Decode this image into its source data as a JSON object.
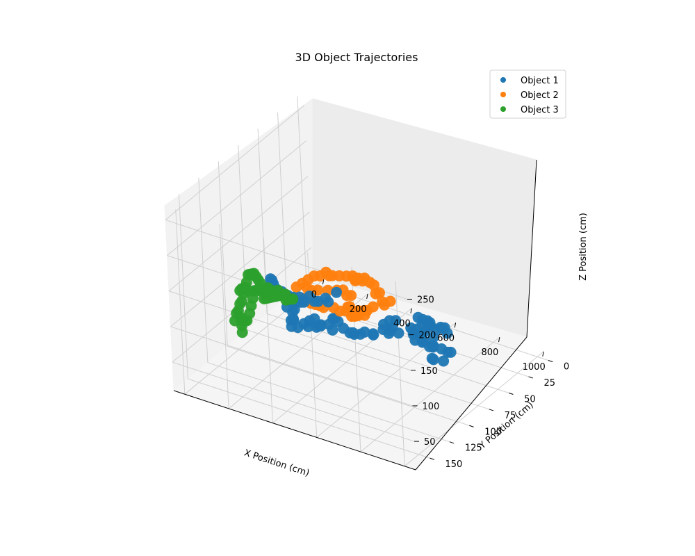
{
  "chart_data": {
    "type": "scatter",
    "projection": "3d",
    "title": "3D Object Trajectories",
    "xlabel": "X Position (cm)",
    "ylabel": "Y Position (cm)",
    "zlabel": "Z Position (cm)",
    "xlim": [
      -50,
      1050
    ],
    "ylim": [
      -8,
      168
    ],
    "zlim": [
      10,
      270
    ],
    "x_ticks": [
      0,
      200,
      400,
      600,
      800,
      1000
    ],
    "y_ticks": [
      0,
      25,
      50,
      75,
      100,
      125,
      150
    ],
    "z_ticks": [
      50,
      100,
      150,
      200,
      250
    ],
    "grid": true,
    "legend_position": "top-right",
    "series": [
      {
        "name": "Object 1",
        "color": "#1f77b4",
        "points": [
          [
            300,
            140,
            165
          ],
          [
            315,
            138,
            170
          ],
          [
            330,
            142,
            180
          ],
          [
            345,
            144,
            172
          ],
          [
            360,
            150,
            168
          ],
          [
            300,
            125,
            140
          ],
          [
            290,
            130,
            160
          ],
          [
            320,
            128,
            150
          ],
          [
            340,
            120,
            135
          ],
          [
            350,
            110,
            125
          ],
          [
            340,
            100,
            120
          ],
          [
            360,
            95,
            110
          ],
          [
            380,
            88,
            105
          ],
          [
            390,
            80,
            112
          ],
          [
            395,
            95,
            118
          ],
          [
            400,
            110,
            128
          ],
          [
            395,
            125,
            140
          ],
          [
            410,
            135,
            150
          ],
          [
            420,
            140,
            146
          ],
          [
            440,
            150,
            142
          ],
          [
            460,
            155,
            140
          ],
          [
            470,
            150,
            135
          ],
          [
            480,
            140,
            128
          ],
          [
            500,
            130,
            122
          ],
          [
            520,
            135,
            130
          ],
          [
            510,
            140,
            142
          ],
          [
            525,
            150,
            150
          ],
          [
            500,
            120,
            115
          ],
          [
            505,
            110,
            110
          ],
          [
            510,
            115,
            120
          ],
          [
            520,
            120,
            125
          ],
          [
            490,
            100,
            90
          ],
          [
            500,
            95,
            80
          ],
          [
            495,
            90,
            75
          ],
          [
            510,
            85,
            70
          ],
          [
            530,
            85,
            75
          ],
          [
            550,
            80,
            70
          ],
          [
            570,
            85,
            75
          ],
          [
            585,
            70,
            65
          ],
          [
            600,
            65,
            80
          ],
          [
            610,
            75,
            90
          ],
          [
            620,
            85,
            95
          ],
          [
            640,
            80,
            88
          ],
          [
            630,
            70,
            70
          ],
          [
            640,
            55,
            60
          ],
          [
            650,
            60,
            70
          ],
          [
            665,
            50,
            68
          ],
          [
            690,
            50,
            75
          ],
          [
            700,
            58,
            85
          ],
          [
            705,
            65,
            95
          ],
          [
            720,
            55,
            80
          ],
          [
            730,
            40,
            60
          ],
          [
            740,
            45,
            65
          ],
          [
            750,
            50,
            72
          ],
          [
            760,
            45,
            60
          ],
          [
            770,
            60,
            80
          ],
          [
            780,
            70,
            95
          ],
          [
            790,
            90,
            110
          ],
          [
            800,
            95,
            100
          ],
          [
            820,
            85,
            110
          ],
          [
            840,
            95,
            115
          ],
          [
            860,
            100,
            108
          ],
          [
            870,
            105,
            118
          ],
          [
            890,
            110,
            120
          ],
          [
            880,
            95,
            100
          ],
          [
            900,
            100,
            105
          ],
          [
            910,
            85,
            85
          ],
          [
            905,
            80,
            80
          ],
          [
            920,
            95,
            100
          ],
          [
            940,
            110,
            120
          ],
          [
            960,
            120,
            130
          ],
          [
            950,
            115,
            108
          ],
          [
            930,
            108,
            98
          ],
          [
            945,
            100,
            90
          ],
          [
            310,
            120,
            120
          ],
          [
            325,
            135,
            160
          ],
          [
            335,
            145,
            185
          ],
          [
            355,
            130,
            150
          ],
          [
            370,
            120,
            140
          ],
          [
            380,
            130,
            150
          ],
          [
            390,
            120,
            135
          ],
          [
            410,
            140,
            155
          ],
          [
            430,
            145,
            148
          ],
          [
            450,
            150,
            145
          ],
          [
            470,
            155,
            150
          ],
          [
            460,
            140,
            130
          ],
          [
            470,
            125,
            115
          ],
          [
            485,
            112,
            98
          ],
          [
            480,
            130,
            118
          ],
          [
            520,
            95,
            80
          ],
          [
            560,
            70,
            68
          ],
          [
            600,
            72,
            72
          ],
          [
            660,
            60,
            62
          ],
          [
            700,
            52,
            70
          ],
          [
            760,
            62,
            70
          ],
          [
            810,
            90,
            103
          ]
        ]
      },
      {
        "name": "Object 2",
        "color": "#ff7f0e",
        "points": [
          [
            390,
            15,
            40
          ],
          [
            400,
            25,
            45
          ],
          [
            410,
            30,
            55
          ],
          [
            400,
            35,
            70
          ],
          [
            395,
            40,
            90
          ],
          [
            390,
            45,
            100
          ],
          [
            400,
            55,
            110
          ],
          [
            410,
            60,
            115
          ],
          [
            420,
            65,
            120
          ],
          [
            430,
            70,
            130
          ],
          [
            440,
            80,
            140
          ],
          [
            445,
            90,
            150
          ],
          [
            450,
            100,
            160
          ],
          [
            455,
            105,
            165
          ],
          [
            460,
            110,
            175
          ],
          [
            470,
            120,
            180
          ],
          [
            480,
            130,
            190
          ],
          [
            490,
            140,
            195
          ],
          [
            500,
            150,
            200
          ],
          [
            510,
            160,
            205
          ],
          [
            505,
            150,
            180
          ],
          [
            495,
            145,
            170
          ],
          [
            490,
            138,
            160
          ],
          [
            480,
            130,
            150
          ],
          [
            470,
            122,
            140
          ],
          [
            460,
            115,
            130
          ],
          [
            450,
            100,
            115
          ],
          [
            440,
            90,
            100
          ],
          [
            430,
            80,
            90
          ],
          [
            420,
            70,
            80
          ],
          [
            410,
            60,
            70
          ],
          [
            400,
            50,
            60
          ],
          [
            395,
            45,
            55
          ],
          [
            385,
            35,
            50
          ],
          [
            380,
            25,
            60
          ],
          [
            375,
            30,
            75
          ],
          [
            380,
            45,
            95
          ],
          [
            385,
            55,
            105
          ],
          [
            400,
            65,
            95
          ],
          [
            410,
            70,
            85
          ],
          [
            420,
            75,
            90
          ],
          [
            430,
            78,
            110
          ],
          [
            440,
            85,
            125
          ],
          [
            450,
            95,
            135
          ],
          [
            465,
            110,
            150
          ],
          [
            475,
            125,
            165
          ],
          [
            485,
            135,
            175
          ],
          [
            500,
            145,
            190
          ],
          [
            420,
            55,
            60
          ],
          [
            430,
            65,
            70
          ],
          [
            440,
            70,
            75
          ],
          [
            450,
            75,
            80
          ],
          [
            455,
            80,
            85
          ]
        ]
      },
      {
        "name": "Object 3",
        "color": "#2ca02c",
        "points": [
          [
            40,
            80,
            90
          ],
          [
            50,
            85,
            100
          ],
          [
            60,
            90,
            110
          ],
          [
            70,
            95,
            120
          ],
          [
            80,
            100,
            125
          ],
          [
            90,
            105,
            130
          ],
          [
            100,
            110,
            135
          ],
          [
            110,
            115,
            130
          ],
          [
            120,
            120,
            128
          ],
          [
            130,
            125,
            125
          ],
          [
            140,
            130,
            120
          ],
          [
            150,
            135,
            122
          ],
          [
            160,
            140,
            118
          ],
          [
            170,
            145,
            120
          ],
          [
            180,
            150,
            115
          ],
          [
            45,
            70,
            70
          ],
          [
            55,
            75,
            80
          ],
          [
            65,
            80,
            85
          ],
          [
            75,
            85,
            90
          ],
          [
            85,
            90,
            95
          ],
          [
            95,
            95,
            100
          ],
          [
            105,
            100,
            105
          ],
          [
            115,
            105,
            110
          ],
          [
            125,
            110,
            115
          ],
          [
            135,
            115,
            110
          ],
          [
            145,
            120,
            105
          ],
          [
            155,
            125,
            100
          ],
          [
            60,
            65,
            60
          ],
          [
            70,
            70,
            65
          ],
          [
            80,
            75,
            70
          ],
          [
            90,
            80,
            75
          ],
          [
            100,
            85,
            80
          ],
          [
            110,
            90,
            85
          ],
          [
            120,
            95,
            90
          ],
          [
            130,
            100,
            95
          ],
          [
            50,
            60,
            55
          ],
          [
            40,
            55,
            50
          ],
          [
            30,
            50,
            45
          ],
          [
            20,
            45,
            40
          ],
          [
            25,
            55,
            55
          ],
          [
            35,
            65,
            65
          ],
          [
            45,
            75,
            75
          ],
          [
            55,
            85,
            85
          ],
          [
            65,
            95,
            95
          ],
          [
            75,
            105,
            105
          ],
          [
            85,
            110,
            115
          ],
          [
            95,
            115,
            120
          ],
          [
            105,
            120,
            125
          ],
          [
            115,
            125,
            128
          ],
          [
            35,
            40,
            30
          ],
          [
            40,
            45,
            35
          ],
          [
            50,
            50,
            40
          ],
          [
            60,
            55,
            45
          ],
          [
            210,
            150,
            120
          ],
          [
            230,
            155,
            118
          ],
          [
            250,
            160,
            115
          ],
          [
            220,
            152,
            125
          ],
          [
            160,
            130,
            95
          ],
          [
            170,
            135,
            100
          ],
          [
            180,
            140,
            105
          ]
        ]
      }
    ]
  }
}
